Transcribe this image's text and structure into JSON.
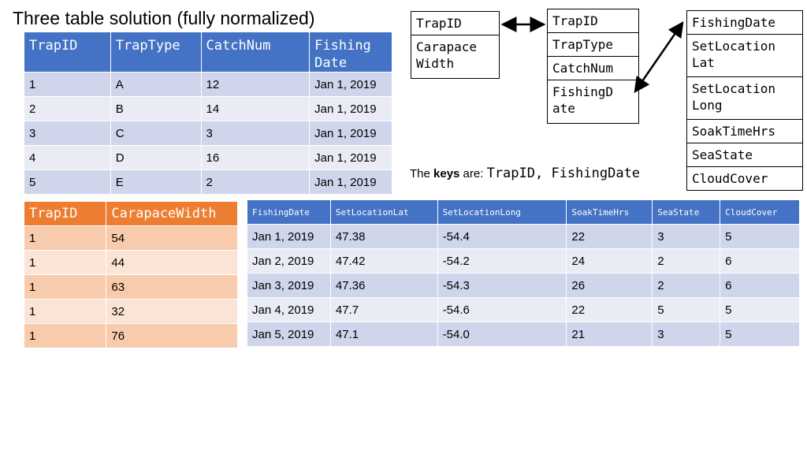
{
  "title": "Three table solution (fully normalized)",
  "trap_table": {
    "headers": [
      "TrapID",
      "TrapType",
      "CatchNum",
      "Fishing Date"
    ],
    "rows": [
      [
        "1",
        "A",
        "12",
        "Jan 1, 2019"
      ],
      [
        "2",
        "B",
        "14",
        "Jan 1, 2019"
      ],
      [
        "3",
        "C",
        "3",
        "Jan 1, 2019"
      ],
      [
        "4",
        "D",
        "16",
        "Jan 1, 2019"
      ],
      [
        "5",
        "E",
        "2",
        "Jan 1, 2019"
      ]
    ]
  },
  "crab_table": {
    "headers": [
      "TrapID",
      "CarapaceWidth"
    ],
    "rows": [
      [
        "1",
        "54"
      ],
      [
        "1",
        "44"
      ],
      [
        "1",
        "63"
      ],
      [
        "1",
        "32"
      ],
      [
        "1",
        "76"
      ]
    ]
  },
  "fishing_table": {
    "headers": [
      "FishingDate",
      "SetLocationLat",
      "SetLocationLong",
      "SoakTimeHrs",
      "SeaState",
      "CloudCover"
    ],
    "rows": [
      [
        "Jan 1, 2019",
        "47.38",
        "-54.4",
        "22",
        "3",
        "5"
      ],
      [
        "Jan 2, 2019",
        "47.42",
        "-54.2",
        "24",
        "2",
        "6"
      ],
      [
        "Jan 3, 2019",
        "47.36",
        "-54.3",
        "26",
        "2",
        "6"
      ],
      [
        "Jan 4, 2019",
        "47.7",
        "-54.6",
        "22",
        "5",
        "5"
      ],
      [
        "Jan 5, 2019",
        "47.1",
        "-54.0",
        "21",
        "3",
        "5"
      ]
    ]
  },
  "entities": {
    "crab": [
      "TrapID",
      "Carapace Width"
    ],
    "trap": [
      "TrapID",
      "TrapType",
      "CatchNum",
      "FishingD ate"
    ],
    "fishing": [
      "FishingDate",
      "SetLocation Lat",
      "SetLocation Long",
      "SoakTimeHrs",
      "SeaState",
      "CloudCover"
    ]
  },
  "keys_note": {
    "prefix": "The ",
    "bold": "keys",
    "middle": " are: ",
    "mono": "TrapID, FishingDate"
  },
  "colors": {
    "blue_header": "#4472c4",
    "orange_header": "#ed7d31"
  }
}
